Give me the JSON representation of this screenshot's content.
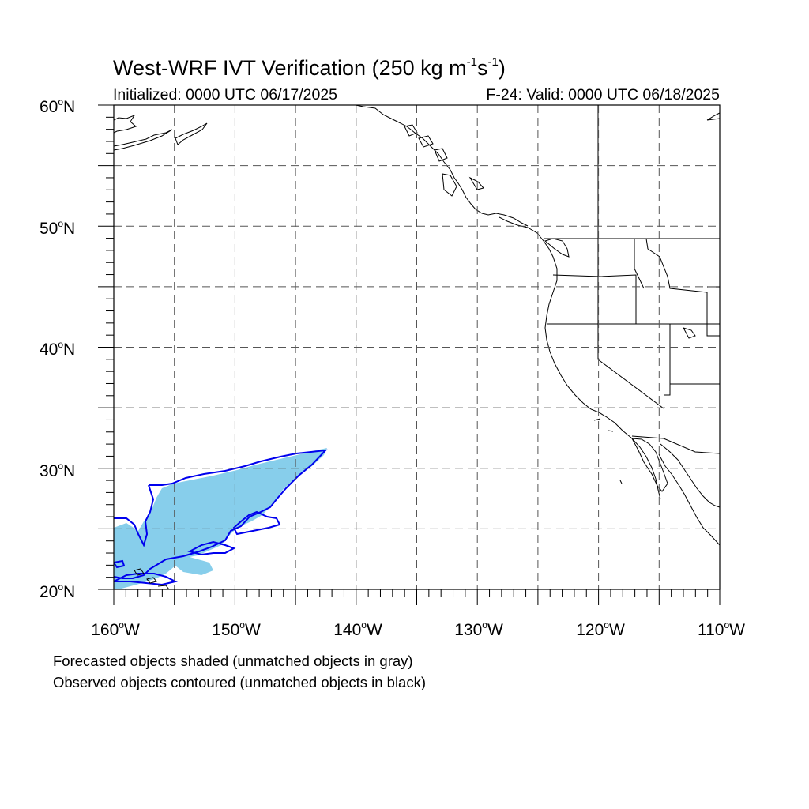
{
  "title": {
    "main": "West-WRF IVT Verification (250 kg m",
    "sup1": "-1",
    "mid": "s",
    "sup2": "-1",
    "end": ")"
  },
  "initialized": "Initialized: 0000 UTC 06/17/2025",
  "valid": "F-24: Valid: 0000 UTC 06/18/2025",
  "lat_labels": [
    {
      "value": "60",
      "unit": "N"
    },
    {
      "value": "50",
      "unit": "N"
    },
    {
      "value": "40",
      "unit": "N"
    },
    {
      "value": "30",
      "unit": "N"
    },
    {
      "value": "20",
      "unit": "N"
    }
  ],
  "lon_labels": [
    {
      "value": "160",
      "unit": "W"
    },
    {
      "value": "150",
      "unit": "W"
    },
    {
      "value": "140",
      "unit": "W"
    },
    {
      "value": "130",
      "unit": "W"
    },
    {
      "value": "120",
      "unit": "W"
    },
    {
      "value": "110",
      "unit": "W"
    }
  ],
  "degree_symbol": "o",
  "legend": {
    "line1": "Forecasted objects shaded (unmatched objects in gray)",
    "line2": "Observed objects contoured (unmatched objects in black)"
  },
  "map": {
    "lon_range": [
      -160,
      -110
    ],
    "lat_range": [
      20,
      60
    ],
    "grid_interval_deg": 5,
    "colors": {
      "forecast_fill": "#87ceeb",
      "observed_contour": "#0000ee",
      "grid": "#555555",
      "coast": "#000000"
    }
  }
}
